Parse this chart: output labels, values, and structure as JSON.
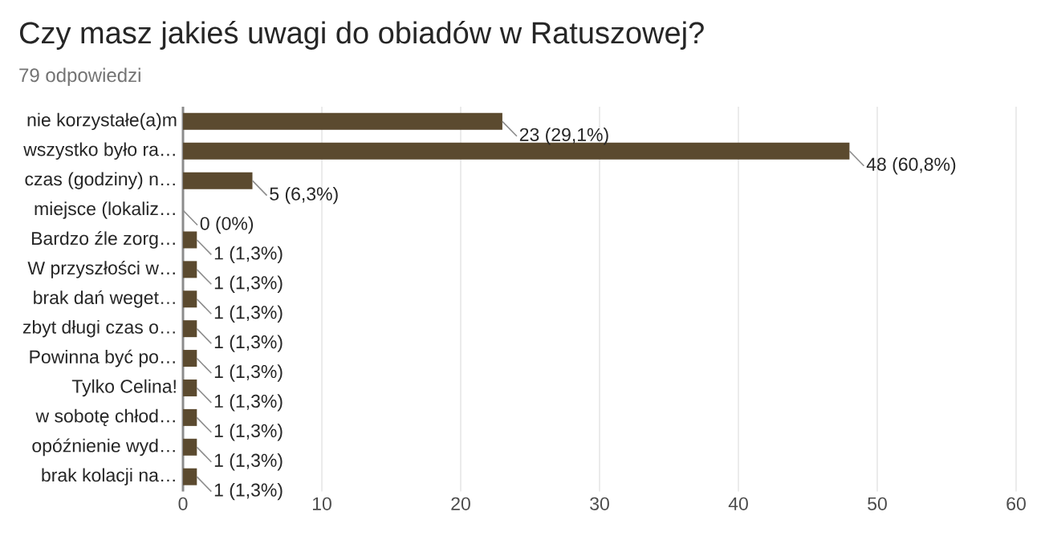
{
  "chart_data": {
    "type": "bar",
    "orientation": "horizontal",
    "title": "Czy masz jakieś uwagi do obiadów w Ratuszowej?",
    "subtitle": "79 odpowiedzi",
    "categories": [
      "nie korzystałe(a)m",
      "wszystko było ra…",
      "czas (godziny) n…",
      "miejsce (lokaliz…",
      "Bardzo źle zorg…",
      "W przyszłości w…",
      "brak dań weget…",
      "zbyt długi czas o…",
      "Powinna być po…",
      "Tylko Celina!",
      "w sobotę chłod…",
      "opóźnienie wyd…",
      "brak kolacji na…"
    ],
    "values": [
      23,
      48,
      5,
      0,
      1,
      1,
      1,
      1,
      1,
      1,
      1,
      1,
      1
    ],
    "value_labels": [
      "23 (29,1%)",
      "48 (60,8%)",
      "5 (6,3%)",
      "0 (0%)",
      "1 (1,3%)",
      "1 (1,3%)",
      "1 (1,3%)",
      "1 (1,3%)",
      "1 (1,3%)",
      "1 (1,3%)",
      "1 (1,3%)",
      "1 (1,3%)",
      "1 (1,3%)"
    ],
    "color": "#5b4a2f",
    "xlim": [
      0,
      60
    ],
    "xticks": [
      0,
      10,
      20,
      30,
      40,
      50,
      60
    ],
    "grid": "x"
  }
}
